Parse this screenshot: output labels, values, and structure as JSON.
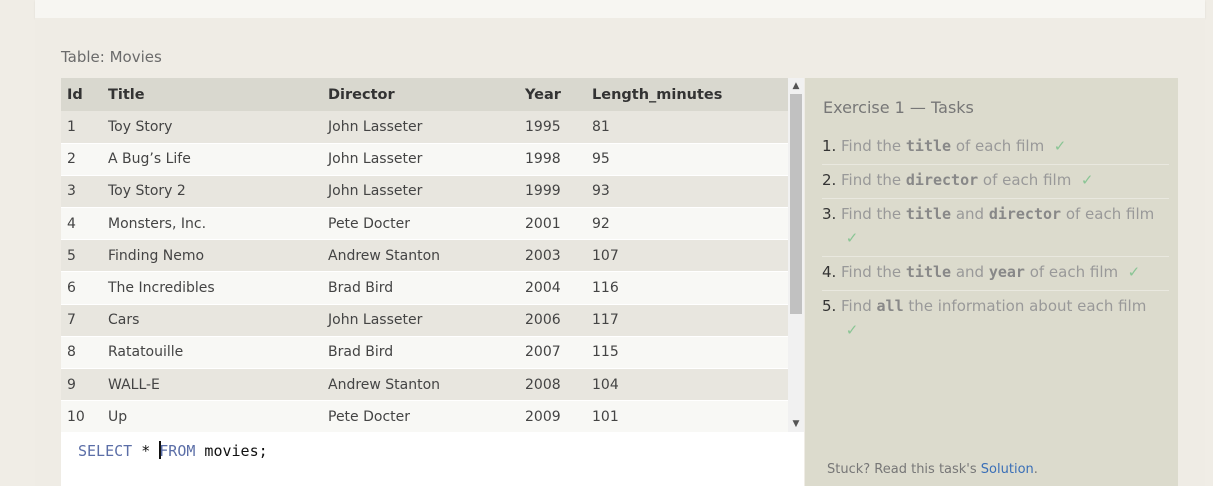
{
  "table_label": "Table: Movies",
  "table": {
    "headers": [
      "Id",
      "Title",
      "Director",
      "Year",
      "Length_minutes"
    ],
    "rows": [
      [
        "1",
        "Toy Story",
        "John Lasseter",
        "1995",
        "81"
      ],
      [
        "2",
        "A Bug’s Life",
        "John Lasseter",
        "1998",
        "95"
      ],
      [
        "3",
        "Toy Story 2",
        "John Lasseter",
        "1999",
        "93"
      ],
      [
        "4",
        "Monsters, Inc.",
        "Pete Docter",
        "2001",
        "92"
      ],
      [
        "5",
        "Finding Nemo",
        "Andrew Stanton",
        "2003",
        "107"
      ],
      [
        "6",
        "The Incredibles",
        "Brad Bird",
        "2004",
        "116"
      ],
      [
        "7",
        "Cars",
        "John Lasseter",
        "2006",
        "117"
      ],
      [
        "8",
        "Ratatouille",
        "Brad Bird",
        "2007",
        "115"
      ],
      [
        "9",
        "WALL-E",
        "Andrew Stanton",
        "2008",
        "104"
      ],
      [
        "10",
        "Up",
        "Pete Docter",
        "2009",
        "101"
      ]
    ]
  },
  "scroll": {
    "up_icon": "▲",
    "down_icon": "▼"
  },
  "editor": {
    "kw_select": "SELECT",
    "star": " * ",
    "kw_from": "FROM",
    "rest": " movies;"
  },
  "tasks": {
    "title": "Exercise 1 — Tasks",
    "check": "✓",
    "items": [
      {
        "num": "1.",
        "pre": "Find the ",
        "code1": "title",
        "mid": " of each film"
      },
      {
        "num": "2.",
        "pre": "Find the ",
        "code1": "director",
        "mid": " of each film"
      },
      {
        "num": "3.",
        "pre": "Find the ",
        "code1": "title",
        "mid": " and ",
        "code2": "director",
        "post": " of each film"
      },
      {
        "num": "4.",
        "pre": "Find the ",
        "code1": "title",
        "mid": " and ",
        "code2": "year",
        "post": " of each film"
      },
      {
        "num": "5.",
        "pre": "Find ",
        "code1": "all",
        "mid": " the information about each film"
      }
    ]
  },
  "stuck": {
    "text": "Stuck? Read this task's ",
    "link": "Solution",
    "end": "."
  }
}
